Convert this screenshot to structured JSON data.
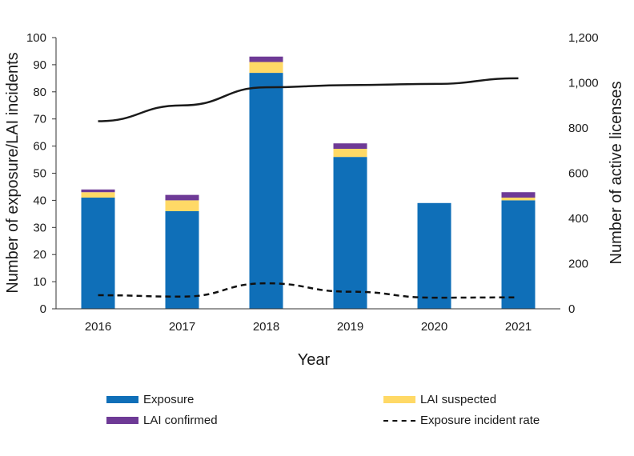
{
  "chart_data": {
    "type": "bar",
    "subtype": "stacked-bar-with-lines",
    "title": "",
    "xlabel": "Year",
    "ylabel": "Number of exposure/LAI incidents",
    "y2label": "Number of active licenses",
    "categories": [
      "2016",
      "2017",
      "2018",
      "2019",
      "2020",
      "2021"
    ],
    "ylim": [
      0,
      100
    ],
    "yticks": [
      0,
      10,
      20,
      30,
      40,
      50,
      60,
      70,
      80,
      90,
      100
    ],
    "y2lim": [
      0,
      1200
    ],
    "y2ticks": [
      0,
      200,
      400,
      600,
      800,
      1000,
      1200
    ],
    "y2tick_labels": [
      "0",
      "200",
      "400",
      "600",
      "800",
      "1,000",
      "1,200"
    ],
    "grid": false,
    "legend_position": "bottom",
    "series": [
      {
        "name": "Exposure",
        "kind": "bar",
        "axis": "left",
        "color": "#0F6FB8",
        "values": [
          41,
          36,
          87,
          56,
          39,
          40
        ]
      },
      {
        "name": "LAI suspected",
        "kind": "bar",
        "axis": "left",
        "color": "#FFD966",
        "values": [
          2,
          4,
          4,
          3,
          0,
          1
        ]
      },
      {
        "name": "LAI confirmed",
        "kind": "bar",
        "axis": "left",
        "color": "#6E3A96",
        "values": [
          1,
          2,
          2,
          2,
          0,
          2
        ]
      },
      {
        "name": "Exposure incident rate",
        "kind": "line",
        "style": "dashed",
        "axis": "left",
        "color": "#111111",
        "values": [
          5.0,
          4.5,
          9.4,
          6.3,
          4.1,
          4.2
        ]
      },
      {
        "name": "Active licenses",
        "kind": "line",
        "style": "solid",
        "axis": "right",
        "color": "#1a1a1a",
        "in_legend": false,
        "values": [
          830,
          900,
          980,
          990,
          995,
          1020
        ]
      }
    ],
    "legend": [
      {
        "label": "Exposure",
        "color": "#0F6FB8",
        "kind": "box"
      },
      {
        "label": "LAI suspected",
        "color": "#FFD966",
        "kind": "box"
      },
      {
        "label": "LAI confirmed",
        "color": "#6E3A96",
        "kind": "box"
      },
      {
        "label": "Exposure incident rate",
        "color": "#111111",
        "kind": "dash"
      }
    ]
  }
}
